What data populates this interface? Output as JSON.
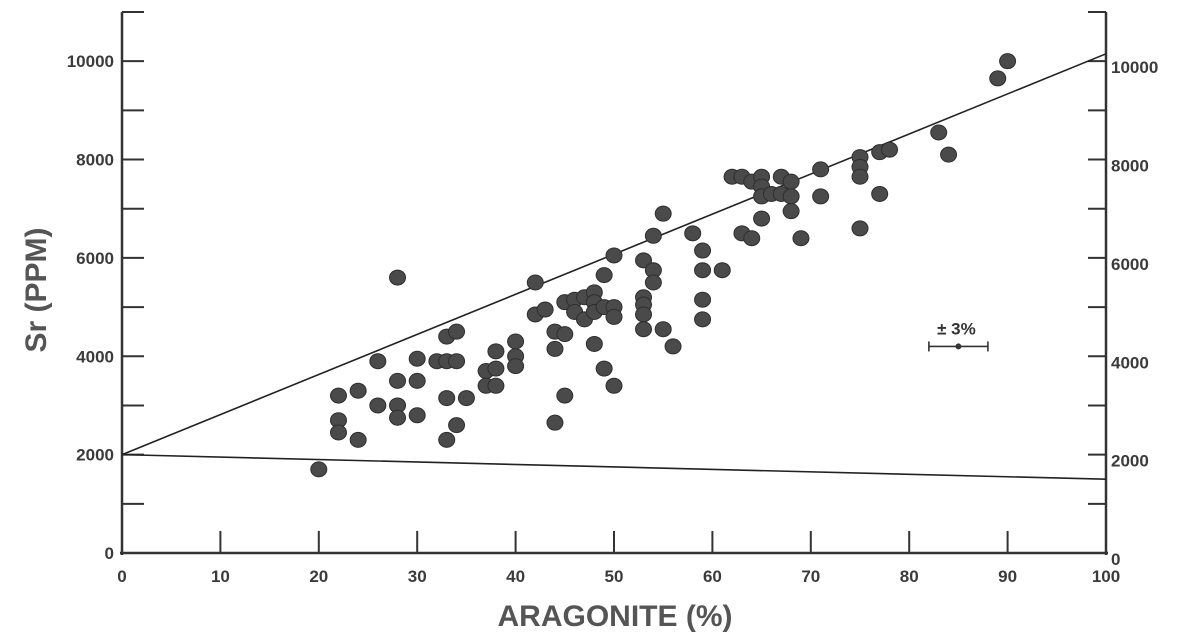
{
  "chart_data": {
    "type": "scatter",
    "title": "",
    "xlabel": "ARAGONITE (%)",
    "ylabel": "Sr (PPM)",
    "xlim": [
      0,
      100
    ],
    "ylim": [
      0,
      11000
    ],
    "ylim_right": [
      0,
      11000
    ],
    "x_ticks": [
      0,
      10,
      20,
      30,
      40,
      50,
      60,
      70,
      80,
      90,
      100
    ],
    "y_ticks_left": [
      0,
      2000,
      4000,
      6000,
      8000,
      10000
    ],
    "y_ticks_right": [
      0,
      2000,
      4000,
      6000,
      8000,
      10000
    ],
    "grid": false,
    "legend": "none",
    "marker_color": "#4a4a4a",
    "line_color": "#222222",
    "annotation": {
      "label": "± 3%",
      "x": 85,
      "y": 4200,
      "error_halfwidth": 3
    },
    "lines": [
      {
        "x": [
          0,
          100
        ],
        "y": [
          2000,
          10150
        ]
      },
      {
        "x": [
          0,
          100
        ],
        "y": [
          2000,
          1500
        ]
      }
    ],
    "points": [
      {
        "x": 20,
        "y": 1700
      },
      {
        "x": 22,
        "y": 3200
      },
      {
        "x": 22,
        "y": 2700
      },
      {
        "x": 22,
        "y": 2450
      },
      {
        "x": 24,
        "y": 3300
      },
      {
        "x": 24,
        "y": 2300
      },
      {
        "x": 26,
        "y": 3900
      },
      {
        "x": 26,
        "y": 3000
      },
      {
        "x": 28,
        "y": 5600
      },
      {
        "x": 28,
        "y": 3500
      },
      {
        "x": 28,
        "y": 3000
      },
      {
        "x": 28,
        "y": 2750
      },
      {
        "x": 30,
        "y": 3950
      },
      {
        "x": 30,
        "y": 3500
      },
      {
        "x": 30,
        "y": 2800
      },
      {
        "x": 32,
        "y": 3900
      },
      {
        "x": 33,
        "y": 4400
      },
      {
        "x": 33,
        "y": 3900
      },
      {
        "x": 33,
        "y": 3150
      },
      {
        "x": 33,
        "y": 2300
      },
      {
        "x": 34,
        "y": 4500
      },
      {
        "x": 34,
        "y": 3900
      },
      {
        "x": 34,
        "y": 2600
      },
      {
        "x": 35,
        "y": 3150
      },
      {
        "x": 37,
        "y": 3700
      },
      {
        "x": 37,
        "y": 3400
      },
      {
        "x": 38,
        "y": 4100
      },
      {
        "x": 38,
        "y": 3750
      },
      {
        "x": 38,
        "y": 3400
      },
      {
        "x": 40,
        "y": 4300
      },
      {
        "x": 40,
        "y": 4000
      },
      {
        "x": 40,
        "y": 3800
      },
      {
        "x": 42,
        "y": 5500
      },
      {
        "x": 42,
        "y": 4850
      },
      {
        "x": 43,
        "y": 4950
      },
      {
        "x": 44,
        "y": 4500
      },
      {
        "x": 44,
        "y": 4150
      },
      {
        "x": 44,
        "y": 2650
      },
      {
        "x": 45,
        "y": 5100
      },
      {
        "x": 45,
        "y": 4450
      },
      {
        "x": 45,
        "y": 3200
      },
      {
        "x": 46,
        "y": 5150
      },
      {
        "x": 46,
        "y": 4900
      },
      {
        "x": 47,
        "y": 5200
      },
      {
        "x": 47,
        "y": 4750
      },
      {
        "x": 48,
        "y": 5300
      },
      {
        "x": 48,
        "y": 5100
      },
      {
        "x": 48,
        "y": 4900
      },
      {
        "x": 48,
        "y": 4250
      },
      {
        "x": 49,
        "y": 5650
      },
      {
        "x": 49,
        "y": 5000
      },
      {
        "x": 49,
        "y": 3750
      },
      {
        "x": 50,
        "y": 6050
      },
      {
        "x": 50,
        "y": 5000
      },
      {
        "x": 50,
        "y": 4800
      },
      {
        "x": 50,
        "y": 3400
      },
      {
        "x": 53,
        "y": 5950
      },
      {
        "x": 53,
        "y": 5200
      },
      {
        "x": 53,
        "y": 5050
      },
      {
        "x": 53,
        "y": 4850
      },
      {
        "x": 53,
        "y": 4550
      },
      {
        "x": 54,
        "y": 6450
      },
      {
        "x": 54,
        "y": 5750
      },
      {
        "x": 54,
        "y": 5500
      },
      {
        "x": 55,
        "y": 6900
      },
      {
        "x": 55,
        "y": 4550
      },
      {
        "x": 56,
        "y": 4200
      },
      {
        "x": 58,
        "y": 6500
      },
      {
        "x": 59,
        "y": 6150
      },
      {
        "x": 59,
        "y": 5750
      },
      {
        "x": 59,
        "y": 5150
      },
      {
        "x": 59,
        "y": 4750
      },
      {
        "x": 61,
        "y": 5750
      },
      {
        "x": 62,
        "y": 7650
      },
      {
        "x": 63,
        "y": 7650
      },
      {
        "x": 63,
        "y": 6500
      },
      {
        "x": 64,
        "y": 7550
      },
      {
        "x": 64,
        "y": 6400
      },
      {
        "x": 65,
        "y": 7650
      },
      {
        "x": 65,
        "y": 7450
      },
      {
        "x": 65,
        "y": 7250
      },
      {
        "x": 65,
        "y": 6800
      },
      {
        "x": 66,
        "y": 7300
      },
      {
        "x": 67,
        "y": 7650
      },
      {
        "x": 67,
        "y": 7300
      },
      {
        "x": 68,
        "y": 7550
      },
      {
        "x": 68,
        "y": 7250
      },
      {
        "x": 68,
        "y": 6950
      },
      {
        "x": 69,
        "y": 6400
      },
      {
        "x": 71,
        "y": 7800
      },
      {
        "x": 71,
        "y": 7250
      },
      {
        "x": 75,
        "y": 8050
      },
      {
        "x": 75,
        "y": 7850
      },
      {
        "x": 75,
        "y": 7650
      },
      {
        "x": 75,
        "y": 6600
      },
      {
        "x": 77,
        "y": 8150
      },
      {
        "x": 77,
        "y": 7300
      },
      {
        "x": 78,
        "y": 8200
      },
      {
        "x": 83,
        "y": 8550
      },
      {
        "x": 84,
        "y": 8100
      },
      {
        "x": 89,
        "y": 9650
      },
      {
        "x": 90,
        "y": 10000
      }
    ]
  }
}
